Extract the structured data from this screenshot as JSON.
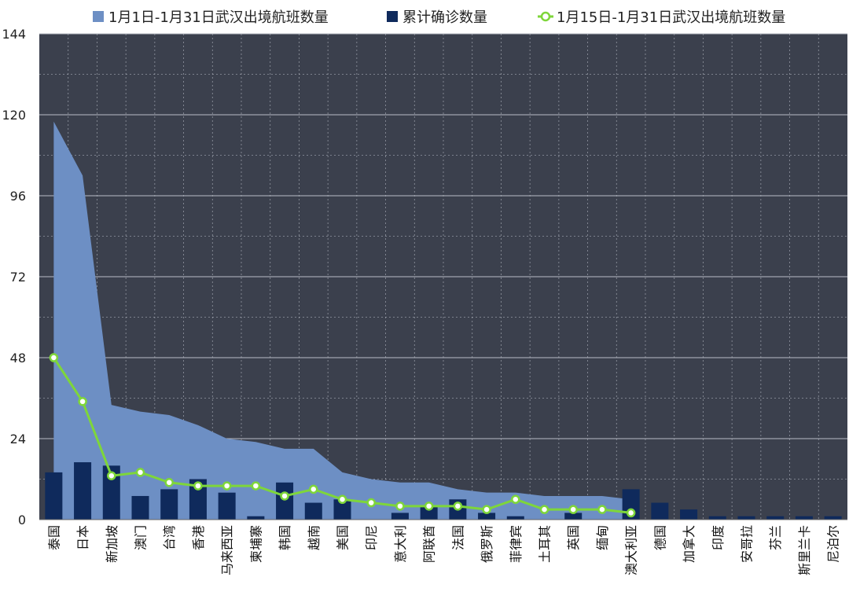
{
  "chart_data": {
    "type": "bar",
    "categories": [
      "泰国",
      "日本",
      "新加坡",
      "澳门",
      "台湾",
      "香港",
      "马来西亚",
      "柬埔寨",
      "韩国",
      "越南",
      "美国",
      "印尼",
      "意大利",
      "阿联酋",
      "法国",
      "俄罗斯",
      "菲律宾",
      "土耳其",
      "英国",
      "缅甸",
      "澳大利亚",
      "德国",
      "加拿大",
      "印度",
      "安哥拉",
      "芬兰",
      "斯里兰卡",
      "尼泊尔"
    ],
    "yticks": [
      "0",
      "24",
      "48",
      "72",
      "96",
      "120",
      "144"
    ],
    "ylim": [
      0,
      144
    ],
    "series": [
      {
        "name": "1月1日-1月31日武汉出境航班数量",
        "kind": "area",
        "color": "#6d8fc4",
        "values": [
          118,
          102,
          34,
          32,
          31,
          28,
          24,
          23,
          21,
          21,
          14,
          12,
          11,
          11,
          9,
          8,
          8,
          7,
          7,
          7,
          6,
          null,
          null,
          null,
          null,
          null,
          null,
          null
        ]
      },
      {
        "name": "累计确诊数量",
        "kind": "bar",
        "color": "#0f2a5c",
        "values": [
          14,
          17,
          16,
          7,
          9,
          12,
          8,
          1,
          11,
          5,
          6,
          0,
          2,
          4,
          6,
          2,
          1,
          0,
          2,
          0,
          9,
          5,
          3,
          1,
          1,
          1,
          1,
          1
        ]
      },
      {
        "name": "1月15日-1月31日武汉出境航班数量",
        "kind": "line",
        "color": "#7ed63a",
        "values": [
          48,
          35,
          13,
          14,
          11,
          10,
          10,
          10,
          7,
          9,
          6,
          5,
          4,
          4,
          4,
          3,
          6,
          3,
          3,
          3,
          2,
          null,
          null,
          null,
          null,
          null,
          null,
          null
        ]
      }
    ],
    "legend_position": "top",
    "grid": true,
    "plot_background": "#3b404d",
    "grid_color": "#b8bcc6"
  }
}
